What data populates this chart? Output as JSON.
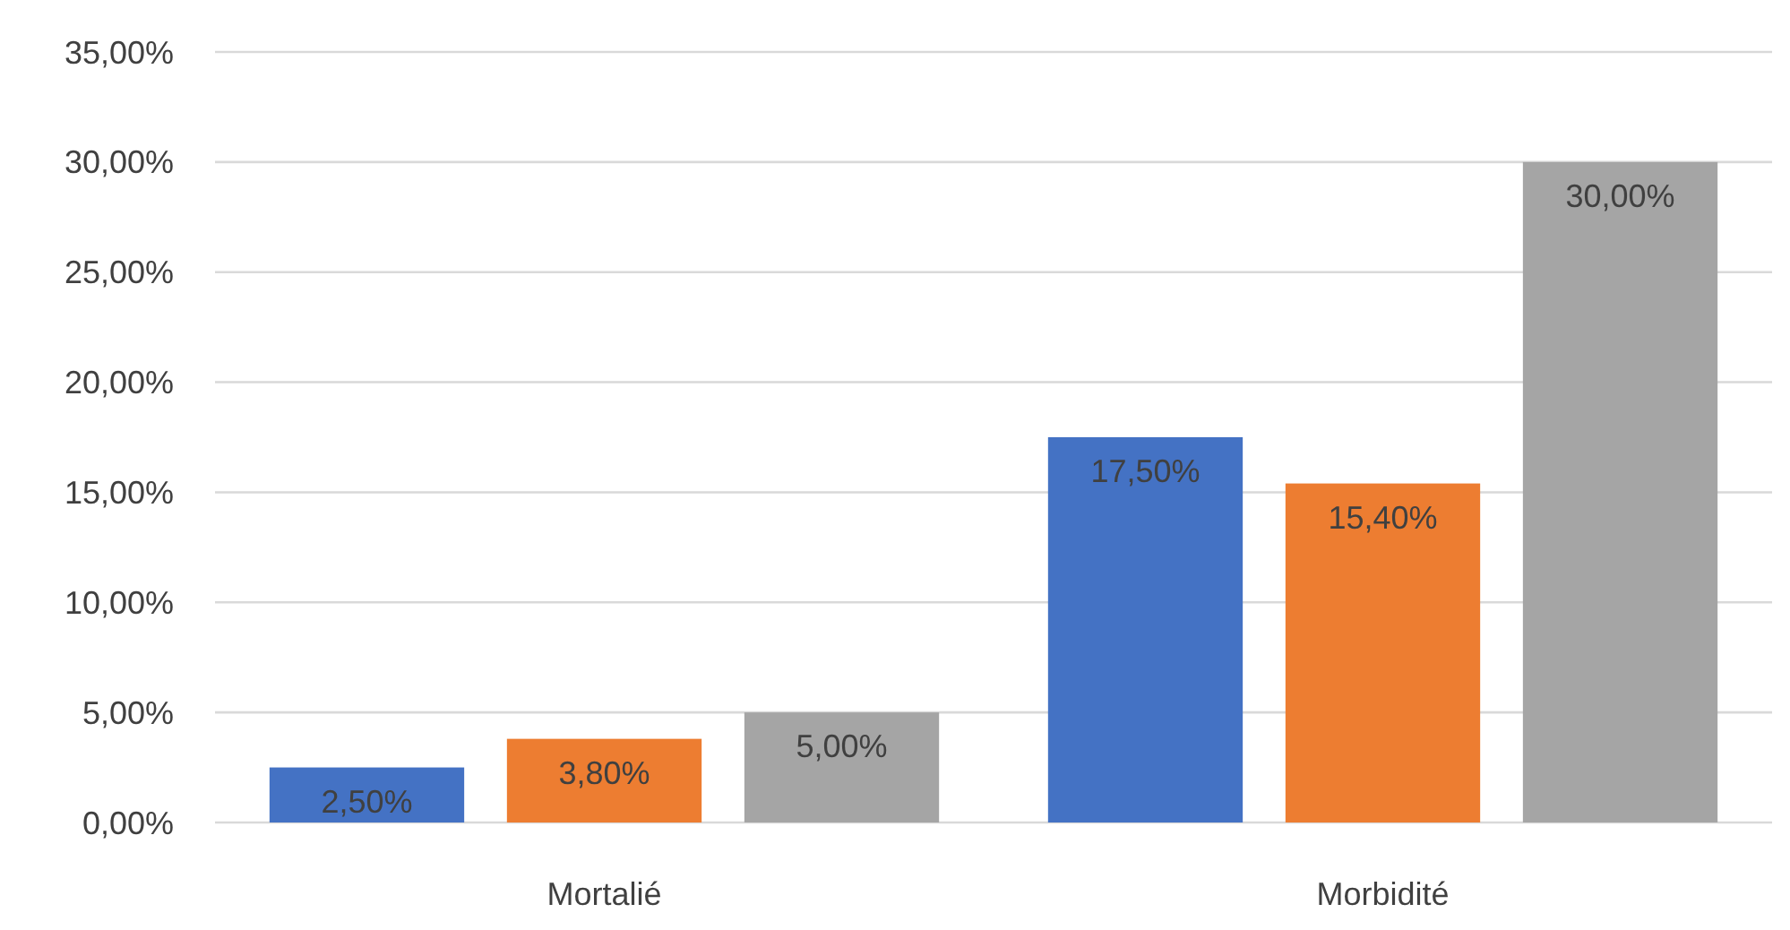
{
  "chart_data": {
    "type": "bar",
    "categories": [
      "Mortalié",
      "Morbidité"
    ],
    "series": [
      {
        "color": "#4472c4",
        "values": [
          2.5,
          17.5
        ],
        "value_labels": [
          "2,50%",
          "17,50%"
        ]
      },
      {
        "color": "#ed7d31",
        "values": [
          3.8,
          15.4
        ],
        "value_labels": [
          "3,80%",
          "15,40%"
        ]
      },
      {
        "color": "#a5a5a5",
        "values": [
          5,
          30
        ],
        "value_labels": [
          "5,00%",
          "30,00%"
        ]
      }
    ],
    "ylim": [
      0,
      35
    ],
    "yticks": [
      {
        "value": 0,
        "label": "0,00%"
      },
      {
        "value": 5,
        "label": "5,00%"
      },
      {
        "value": 10,
        "label": "10,00%"
      },
      {
        "value": 15,
        "label": "15,00%"
      },
      {
        "value": 20,
        "label": "20,00%"
      },
      {
        "value": 25,
        "label": "25,00%"
      },
      {
        "value": 30,
        "label": "30,00%"
      },
      {
        "value": 35,
        "label": "35,00%"
      }
    ],
    "grid": "y"
  }
}
